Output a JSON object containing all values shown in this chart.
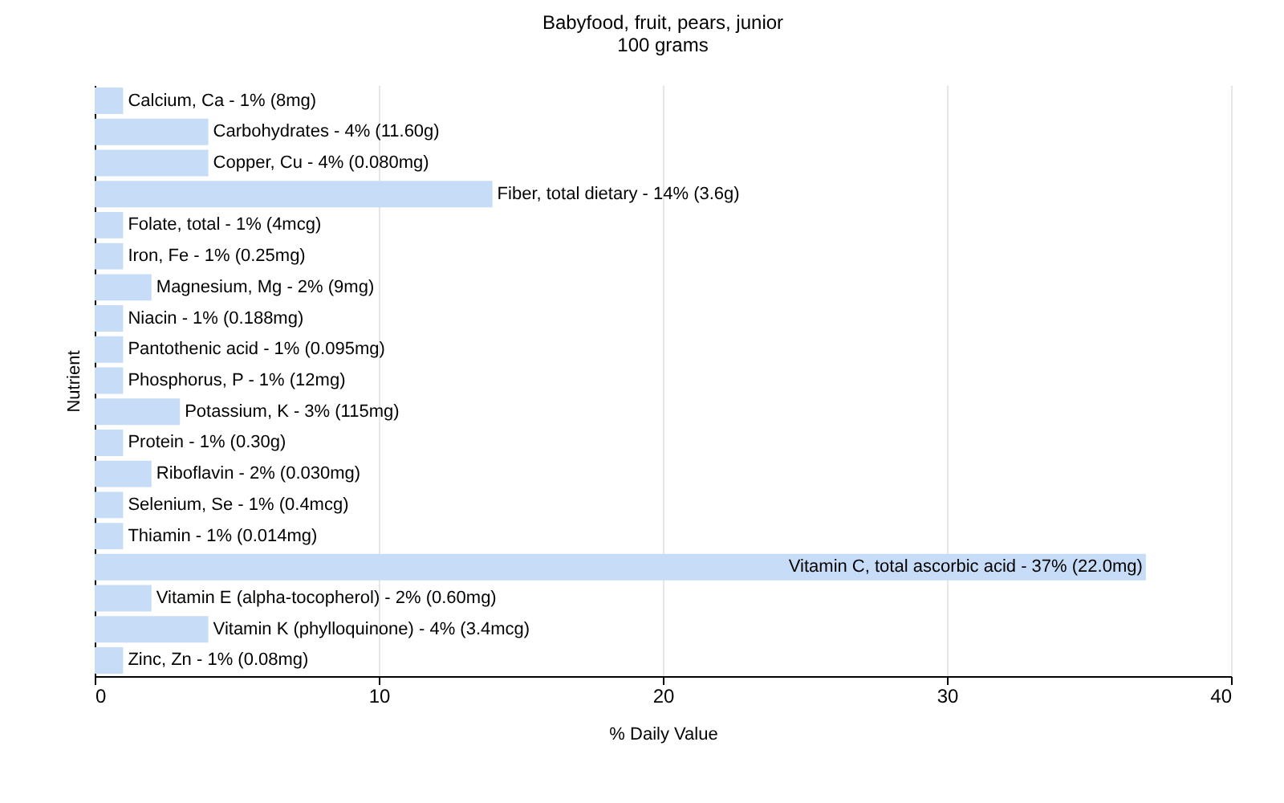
{
  "chart_data": {
    "type": "bar",
    "orientation": "horizontal",
    "title": "Babyfood, fruit, pears, junior",
    "subtitle": "100 grams",
    "xlabel": "% Daily Value",
    "ylabel": "Nutrient",
    "categories": [
      "Calcium, Ca - 1% (8mg)",
      "Carbohydrates - 4% (11.60g)",
      "Copper, Cu - 4% (0.080mg)",
      "Fiber, total dietary - 14% (3.6g)",
      "Folate, total - 1% (4mcg)",
      "Iron, Fe - 1% (0.25mg)",
      "Magnesium, Mg - 2% (9mg)",
      "Niacin - 1% (0.188mg)",
      "Pantothenic acid - 1% (0.095mg)",
      "Phosphorus, P - 1% (12mg)",
      "Potassium, K - 3% (115mg)",
      "Protein - 1% (0.30g)",
      "Riboflavin - 2% (0.030mg)",
      "Selenium, Se - 1% (0.4mcg)",
      "Thiamin - 1% (0.014mg)",
      "Vitamin C, total ascorbic acid - 37% (22.0mg)",
      "Vitamin E (alpha-tocopherol) - 2% (0.60mg)",
      "Vitamin K (phylloquinone) - 4% (3.4mcg)",
      "Zinc, Zn - 1% (0.08mg)"
    ],
    "series": [
      {
        "color": "#c6dcf7",
        "values": [
          1,
          4,
          4,
          14,
          1,
          1,
          2,
          1,
          1,
          1,
          3,
          1,
          2,
          1,
          1,
          37,
          2,
          4,
          1
        ]
      }
    ],
    "xlim": [
      0,
      40
    ],
    "xticks": [
      0,
      10,
      20,
      30,
      40
    ],
    "grid": "x"
  }
}
